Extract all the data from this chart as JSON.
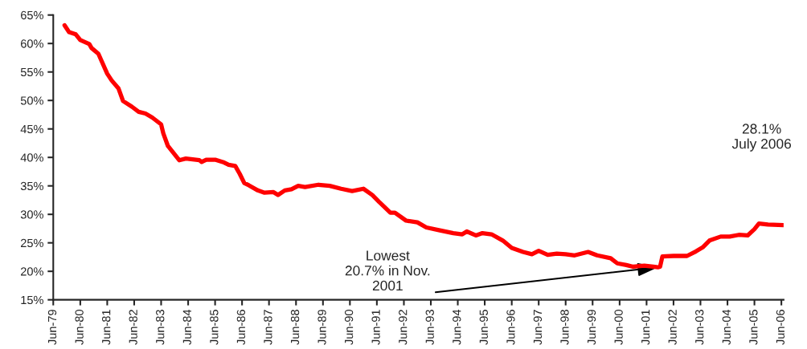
{
  "chart_data": {
    "type": "line",
    "series": [
      {
        "color": "#ff0000",
        "x": [
          "1979-11",
          "1980-01",
          "1980-04",
          "1980-06",
          "1980-10",
          "1980-11",
          "1981-02",
          "1981-06",
          "1981-08",
          "1981-11",
          "1982-01",
          "1982-05",
          "1982-08",
          "1982-11",
          "1983-02",
          "1983-06",
          "1983-07",
          "1983-09",
          "1984-02",
          "1984-05",
          "1984-11",
          "1984-12",
          "1985-02",
          "1985-06",
          "1985-10",
          "1985-12",
          "1986-03",
          "1986-05",
          "1986-07",
          "1986-09",
          "1987-01",
          "1987-04",
          "1987-08",
          "1987-10",
          "1988-01",
          "1988-04",
          "1988-07",
          "1988-10",
          "1989-04",
          "1989-09",
          "1990-02",
          "1990-07",
          "1990-12",
          "1991-04",
          "1991-07",
          "1991-12",
          "1992-02",
          "1992-07",
          "1992-12",
          "1993-04",
          "1993-10",
          "1994-04",
          "1994-08",
          "1994-10",
          "1995-02",
          "1995-05",
          "1995-09",
          "1996-02",
          "1996-06",
          "1996-11",
          "1997-03",
          "1997-06",
          "1997-10",
          "1998-02",
          "1998-06",
          "1998-10",
          "1999-04",
          "1999-08",
          "2000-02",
          "2000-05",
          "2000-09",
          "2000-12",
          "2001-05",
          "2001-09",
          "2001-11",
          "2001-12",
          "2002-01",
          "2002-06",
          "2002-12",
          "2003-04",
          "2003-07",
          "2003-10",
          "2004-03",
          "2004-07",
          "2004-11",
          "2005-03",
          "2005-06",
          "2005-08",
          "2005-12",
          "2006-07"
        ],
        "values": [
          63.2,
          62.0,
          61.6,
          60.6,
          59.9,
          59.2,
          58.2,
          54.7,
          53.5,
          52.1,
          49.9,
          48.9,
          48.0,
          47.7,
          47.0,
          45.8,
          44.2,
          42.0,
          39.5,
          39.8,
          39.5,
          39.2,
          39.6,
          39.6,
          39.1,
          38.7,
          38.5,
          37.1,
          35.5,
          35.1,
          34.2,
          33.8,
          33.9,
          33.4,
          34.2,
          34.4,
          35.0,
          34.8,
          35.2,
          35.0,
          34.5,
          34.1,
          34.5,
          33.4,
          32.2,
          30.3,
          30.3,
          28.9,
          28.6,
          27.7,
          27.2,
          26.7,
          26.5,
          27.0,
          26.3,
          26.7,
          26.5,
          25.4,
          24.1,
          23.4,
          23.0,
          23.6,
          22.9,
          23.1,
          23.0,
          22.8,
          23.4,
          22.8,
          22.3,
          21.4,
          21.1,
          20.8,
          21.0,
          20.8,
          20.7,
          20.8,
          22.6,
          22.7,
          22.7,
          23.5,
          24.2,
          25.4,
          26.1,
          26.1,
          26.4,
          26.3,
          27.4,
          28.4,
          28.2,
          28.1
        ]
      }
    ],
    "xlim": [
      "1979-06",
      "2006-07"
    ],
    "xticks": [
      {
        "value": "1979-06",
        "label": "Jun-79"
      },
      {
        "value": "1980-06",
        "label": "Jun-80"
      },
      {
        "value": "1981-06",
        "label": "Jun-81"
      },
      {
        "value": "1982-06",
        "label": "Jun-82"
      },
      {
        "value": "1983-06",
        "label": "Jun-83"
      },
      {
        "value": "1984-06",
        "label": "Jun-84"
      },
      {
        "value": "1985-06",
        "label": "Jun-85"
      },
      {
        "value": "1986-06",
        "label": "Jun-86"
      },
      {
        "value": "1987-06",
        "label": "Jun-87"
      },
      {
        "value": "1988-06",
        "label": "Jun-88"
      },
      {
        "value": "1989-06",
        "label": "Jun-89"
      },
      {
        "value": "1990-06",
        "label": "Jun-90"
      },
      {
        "value": "1991-06",
        "label": "Jun-91"
      },
      {
        "value": "1992-06",
        "label": "Jun-92"
      },
      {
        "value": "1993-06",
        "label": "Jun-93"
      },
      {
        "value": "1994-06",
        "label": "Jun-94"
      },
      {
        "value": "1995-06",
        "label": "Jun-95"
      },
      {
        "value": "1996-06",
        "label": "Jun-96"
      },
      {
        "value": "1997-06",
        "label": "Jun-97"
      },
      {
        "value": "1998-06",
        "label": "Jun-98"
      },
      {
        "value": "1999-06",
        "label": "Jun-99"
      },
      {
        "value": "2000-06",
        "label": "Jun-00"
      },
      {
        "value": "2001-06",
        "label": "Jun-01"
      },
      {
        "value": "2002-06",
        "label": "Jun-02"
      },
      {
        "value": "2003-06",
        "label": "Jun-03"
      },
      {
        "value": "2004-06",
        "label": "Jun-04"
      },
      {
        "value": "2005-06",
        "label": "Jun-05"
      },
      {
        "value": "2006-06",
        "label": "Jun-06"
      }
    ],
    "ylim": [
      15,
      65
    ],
    "yticks": [
      {
        "value": 15,
        "label": "15%"
      },
      {
        "value": 20,
        "label": "20%"
      },
      {
        "value": 25,
        "label": "25%"
      },
      {
        "value": 30,
        "label": "30%"
      },
      {
        "value": 35,
        "label": "35%"
      },
      {
        "value": 40,
        "label": "40%"
      },
      {
        "value": 45,
        "label": "45%"
      },
      {
        "value": 50,
        "label": "50%"
      },
      {
        "value": 55,
        "label": "55%"
      },
      {
        "value": 60,
        "label": "60%"
      },
      {
        "value": 65,
        "label": "65%"
      }
    ],
    "annotations": [
      {
        "text": "Lowest\n20.7% in Nov.\n2001",
        "x": "2001-11",
        "y": 20.7
      },
      "28.1%\nJuly 2006"
    ],
    "grid": false,
    "legend": false,
    "marker": "none",
    "line_style": "solid"
  }
}
